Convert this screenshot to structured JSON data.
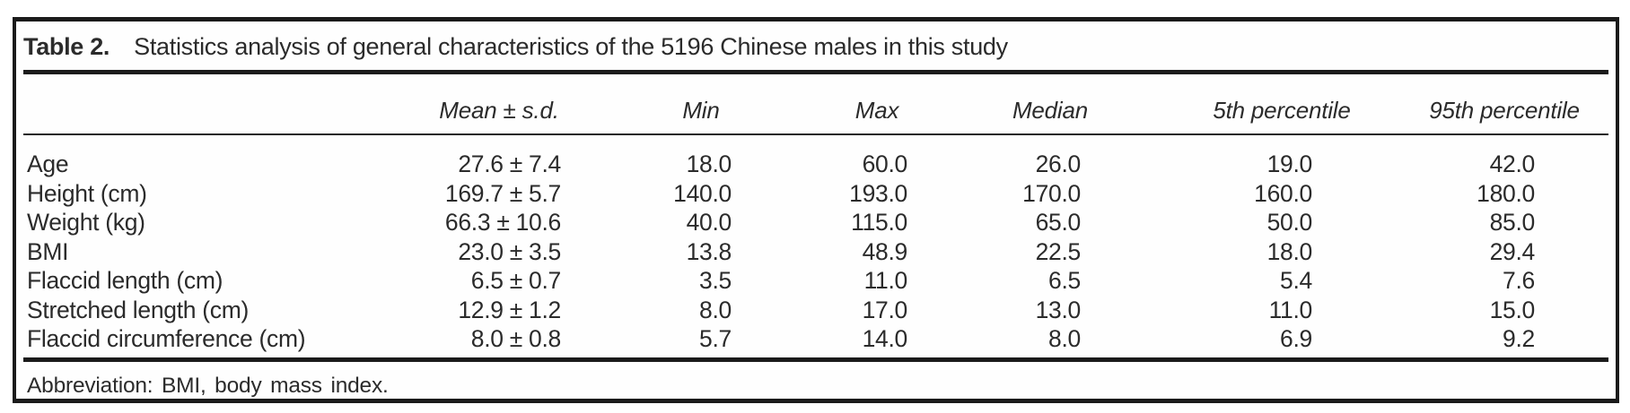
{
  "table": {
    "label": "Table 2.",
    "title": "Statistics analysis of general characteristics of the 5196 Chinese males in this study",
    "columns": {
      "stat": "",
      "mean_sd": "Mean ± s.d.",
      "min": "Min",
      "max": "Max",
      "median": "Median",
      "p5": "5th percentile",
      "p95": "95th percentile"
    },
    "rows": [
      {
        "name": "Age",
        "mean_sd": "27.6 ± 7.4",
        "min": "18.0",
        "max": "60.0",
        "median": "26.0",
        "p5": "19.0",
        "p95": "42.0"
      },
      {
        "name": "Height (cm)",
        "mean_sd": "169.7 ± 5.7",
        "min": "140.0",
        "max": "193.0",
        "median": "170.0",
        "p5": "160.0",
        "p95": "180.0"
      },
      {
        "name": "Weight (kg)",
        "mean_sd": "66.3 ± 10.6",
        "min": "40.0",
        "max": "115.0",
        "median": "65.0",
        "p5": "50.0",
        "p95": "85.0"
      },
      {
        "name": "BMI",
        "mean_sd": "23.0 ± 3.5",
        "min": "13.8",
        "max": "48.9",
        "median": "22.5",
        "p5": "18.0",
        "p95": "29.4"
      },
      {
        "name": "Flaccid length (cm)",
        "mean_sd": "6.5 ± 0.7",
        "min": "3.5",
        "max": "11.0",
        "median": "6.5",
        "p5": "5.4",
        "p95": "7.6"
      },
      {
        "name": "Stretched length (cm)",
        "mean_sd": "12.9 ± 1.2",
        "min": "8.0",
        "max": "17.0",
        "median": "13.0",
        "p5": "11.0",
        "p95": "15.0"
      },
      {
        "name": "Flaccid circumference (cm)",
        "mean_sd": "8.0 ± 0.8",
        "min": "5.7",
        "max": "14.0",
        "median": "8.0",
        "p5": "6.9",
        "p95": "9.2"
      }
    ],
    "footnote": "Abbreviation: BMI, body mass index."
  }
}
